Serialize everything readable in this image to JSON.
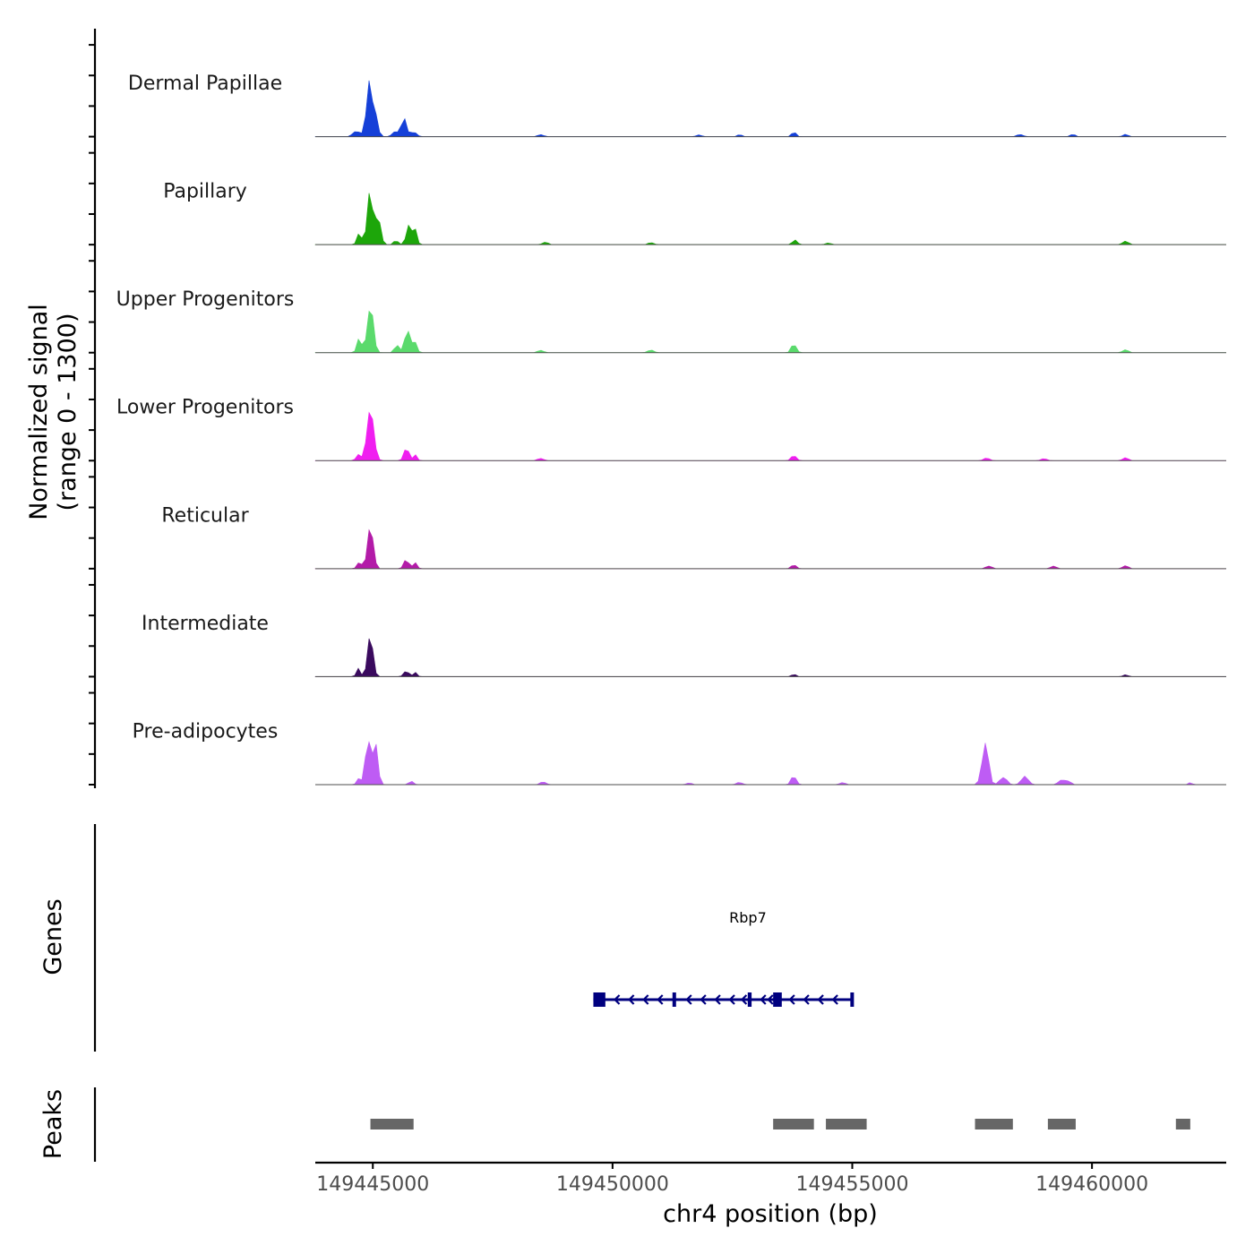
{
  "chart_data": {
    "type": "area",
    "title": "",
    "ylabel": "Normalized signal",
    "ylabel_range": "(range 0 - 1300)",
    "xlabel": "chr4 position (bp)",
    "chromosome": "chr4",
    "xlim": [
      149443800,
      149462800
    ],
    "ylim": [
      0,
      1300
    ],
    "x_ticks": [
      149445000,
      149450000,
      149455000,
      149460000
    ],
    "tracks": [
      {
        "name": "Dermal Papillae",
        "color": "#1540D8",
        "peaks": [
          [
            149444900,
            1300,
            35
          ],
          [
            149444740,
            110,
            50
          ],
          [
            149444620,
            110,
            60
          ],
          [
            149445000,
            900,
            70
          ],
          [
            149445650,
            450,
            55
          ],
          [
            149445850,
            120,
            60
          ],
          [
            149445470,
            130,
            60
          ],
          [
            149448500,
            50,
            60
          ],
          [
            149453780,
            120,
            45
          ],
          [
            149452650,
            50,
            50
          ],
          [
            149451800,
            50,
            50
          ],
          [
            149458500,
            60,
            60
          ],
          [
            149459600,
            60,
            50
          ],
          [
            149460700,
            60,
            50
          ]
        ]
      },
      {
        "name": "Papillary",
        "color": "#1DA60A",
        "peaks": [
          [
            149444940,
            1280,
            55
          ],
          [
            149444720,
            300,
            45
          ],
          [
            149445100,
            700,
            60
          ],
          [
            149445750,
            520,
            50
          ],
          [
            149445880,
            400,
            40
          ],
          [
            149445480,
            120,
            45
          ],
          [
            149448600,
            60,
            60
          ],
          [
            149450800,
            50,
            60
          ],
          [
            149453800,
            130,
            50
          ],
          [
            149454500,
            40,
            60
          ],
          [
            149460700,
            90,
            60
          ]
        ]
      },
      {
        "name": "Upper Progenitors",
        "color": "#5ADA6C",
        "peaks": [
          [
            149444950,
            1300,
            60
          ],
          [
            149444720,
            400,
            45
          ],
          [
            149445720,
            600,
            55
          ],
          [
            149445870,
            300,
            45
          ],
          [
            149445500,
            180,
            50
          ],
          [
            149450800,
            70,
            60
          ],
          [
            149453780,
            230,
            50
          ],
          [
            149448500,
            60,
            60
          ],
          [
            149460700,
            70,
            60
          ]
        ]
      },
      {
        "name": "Lower Progenitors",
        "color": "#F01EF0",
        "peaks": [
          [
            149444950,
            1300,
            70
          ],
          [
            149444700,
            160,
            45
          ],
          [
            149445700,
            320,
            50
          ],
          [
            149445880,
            150,
            40
          ],
          [
            149453780,
            140,
            50
          ],
          [
            149448500,
            60,
            60
          ],
          [
            149457800,
            70,
            60
          ],
          [
            149459000,
            50,
            60
          ],
          [
            149460700,
            70,
            60
          ]
        ]
      },
      {
        "name": "Reticular",
        "color": "#B31BA8",
        "peaks": [
          [
            149444950,
            1130,
            60
          ],
          [
            149444720,
            180,
            45
          ],
          [
            149445700,
            230,
            50
          ],
          [
            149445880,
            170,
            40
          ],
          [
            149453780,
            100,
            50
          ],
          [
            149457850,
            70,
            60
          ],
          [
            149459200,
            60,
            60
          ],
          [
            149460700,
            70,
            60
          ]
        ]
      },
      {
        "name": "Intermediate",
        "color": "#3A0A5E",
        "peaks": [
          [
            149444950,
            1060,
            55
          ],
          [
            149444700,
            200,
            40
          ],
          [
            149445700,
            160,
            50
          ],
          [
            149445880,
            110,
            40
          ],
          [
            149453780,
            70,
            40
          ],
          [
            149460700,
            50,
            50
          ]
        ]
      },
      {
        "name": "Pre-adipocytes",
        "color": "#BE5CF4",
        "peaks": [
          [
            149444900,
            1180,
            50
          ],
          [
            149445050,
            1020,
            55
          ],
          [
            149444720,
            170,
            45
          ],
          [
            149445800,
            100,
            45
          ],
          [
            149448550,
            70,
            60
          ],
          [
            149453780,
            230,
            50
          ],
          [
            149457800,
            700,
            55
          ],
          [
            149457750,
            520,
            65
          ],
          [
            149458150,
            200,
            70
          ],
          [
            149458600,
            210,
            70
          ],
          [
            149459350,
            120,
            60
          ],
          [
            149459500,
            100,
            60
          ],
          [
            149451600,
            40,
            60
          ],
          [
            149452650,
            60,
            60
          ],
          [
            149454800,
            50,
            60
          ],
          [
            149462050,
            50,
            40
          ]
        ]
      }
    ],
    "gene": {
      "name": "Rbp7",
      "strand": "-",
      "color": "#00007F",
      "start": 149449600,
      "end": 149455000,
      "exons": [
        [
          149449600,
          149449850
        ],
        [
          149451250,
          149451320
        ],
        [
          149452820,
          149452900
        ],
        [
          149453350,
          149453530
        ],
        [
          149454960,
          149455000
        ]
      ],
      "arrows": [
        149450050,
        149450350,
        149450650,
        149450950,
        149451550,
        149451850,
        149452150,
        149452450,
        149452700,
        149453100,
        149453250,
        149453700,
        149454000,
        149454300,
        149454600
      ]
    },
    "peaks_track": {
      "name": "Peaks",
      "color": "#666666",
      "regions": [
        [
          149444950,
          149445850
        ],
        [
          149453350,
          149454200
        ],
        [
          149454450,
          149455300
        ],
        [
          149457560,
          149458350
        ],
        [
          149459080,
          149459660
        ],
        [
          149461750,
          149462050
        ]
      ]
    },
    "panel_labels": {
      "genes": "Genes",
      "peaks": "Peaks"
    }
  }
}
